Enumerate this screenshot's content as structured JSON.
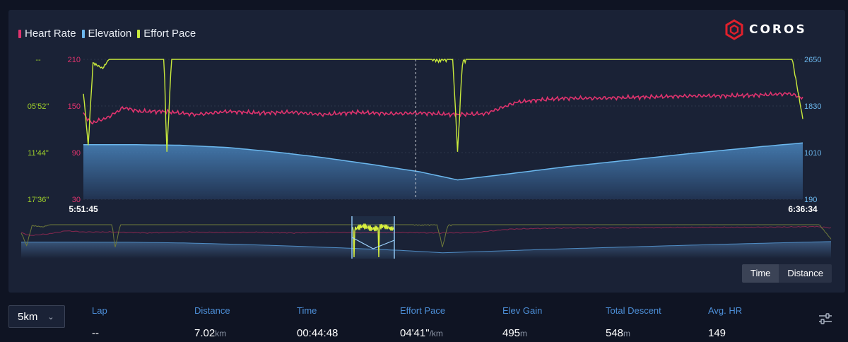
{
  "legend": [
    {
      "label": "Heart Rate",
      "color": "#e0336e"
    },
    {
      "label": "Elevation",
      "color": "#6cb8ee"
    },
    {
      "label": "Effort Pace",
      "color": "#c9ea3c"
    }
  ],
  "logo": {
    "text": "COROS",
    "color": "#e0202c"
  },
  "chart_data": {
    "type": "line",
    "x_start": "5:51:45",
    "x_end": "6:36:34",
    "x_range_minutes": [
      0,
      44.8
    ],
    "hr_axis": {
      "ticks": [
        "210",
        "150",
        "90",
        "30"
      ],
      "values": [
        210,
        150,
        90,
        30
      ],
      "color": "#e0336e"
    },
    "pace_axis": {
      "ticks": [
        "--",
        "05'52\"",
        "11'44\"",
        "17'36\""
      ],
      "color": "#9fd02a"
    },
    "elevation_axis": {
      "ticks": [
        "2650",
        "1830",
        "1010",
        "190"
      ],
      "values": [
        2650,
        1830,
        1010,
        190
      ],
      "color": "#6cb8ee"
    },
    "cursor_minute": 20.7,
    "series": [
      {
        "name": "Heart Rate",
        "color": "#e0336e",
        "x": [
          0,
          0.5,
          1.5,
          2.5,
          3.5,
          5,
          7,
          9,
          11,
          13,
          15,
          17,
          19,
          21,
          23,
          25,
          27,
          28.5,
          30,
          32,
          34,
          36,
          38,
          40,
          42,
          44,
          44.8
        ],
        "y": [
          140,
          128,
          135,
          148,
          143,
          143,
          139,
          143,
          141,
          142,
          139,
          142,
          140,
          141,
          139,
          140,
          155,
          158,
          160,
          160,
          161,
          162,
          163,
          163,
          164,
          166,
          160
        ]
      },
      {
        "name": "Elevation",
        "color": "#6cb8ee",
        "x": [
          0,
          3,
          6,
          9,
          12,
          15,
          18,
          21,
          23.3,
          26,
          30,
          34,
          38,
          42,
          44.8
        ],
        "y": [
          1150,
          1150,
          1140,
          1100,
          1020,
          920,
          800,
          670,
          530,
          620,
          760,
          880,
          1000,
          1110,
          1180
        ]
      },
      {
        "name": "Effort Pace",
        "color": "#c9ea3c",
        "x": [
          0,
          0.3,
          0.6,
          1.2,
          2,
          3,
          4,
          5,
          5.2,
          5.5,
          6,
          7,
          9,
          11,
          13,
          15,
          17,
          19,
          20,
          21,
          22,
          23,
          23.3,
          23.6,
          24,
          24.5,
          25,
          27,
          30,
          33,
          36,
          39,
          42,
          44,
          44.8
        ],
        "pace_seconds": [
          600,
          1000,
          380,
          420,
          280,
          270,
          268,
          265,
          1050,
          320,
          275,
          272,
          270,
          280,
          290,
          300,
          280,
          320,
          300,
          280,
          360,
          330,
          1050,
          380,
          320,
          250,
          210,
          250,
          240,
          250,
          245,
          240,
          250,
          250,
          800
        ]
      }
    ],
    "ylim_hr": [
      30,
      210
    ],
    "ylim_elevation": [
      190,
      2650
    ]
  },
  "toggle": {
    "time_label": "Time",
    "distance_label": "Distance",
    "active": "time"
  },
  "lap_select": {
    "value": "5km"
  },
  "summary": {
    "headers": [
      "Lap",
      "Distance",
      "Time",
      "Effort Pace",
      "Elev Gain",
      "Total Descent",
      "Avg. HR"
    ],
    "values": [
      {
        "value": "--",
        "unit": ""
      },
      {
        "value": "7.02",
        "unit": "km"
      },
      {
        "value": "00:44:48",
        "unit": ""
      },
      {
        "value": "04'41\"",
        "unit": "/km"
      },
      {
        "value": "495",
        "unit": "m"
      },
      {
        "value": "548",
        "unit": "m"
      },
      {
        "value": "149",
        "unit": ""
      }
    ],
    "header_color": "#4d8fd8"
  }
}
